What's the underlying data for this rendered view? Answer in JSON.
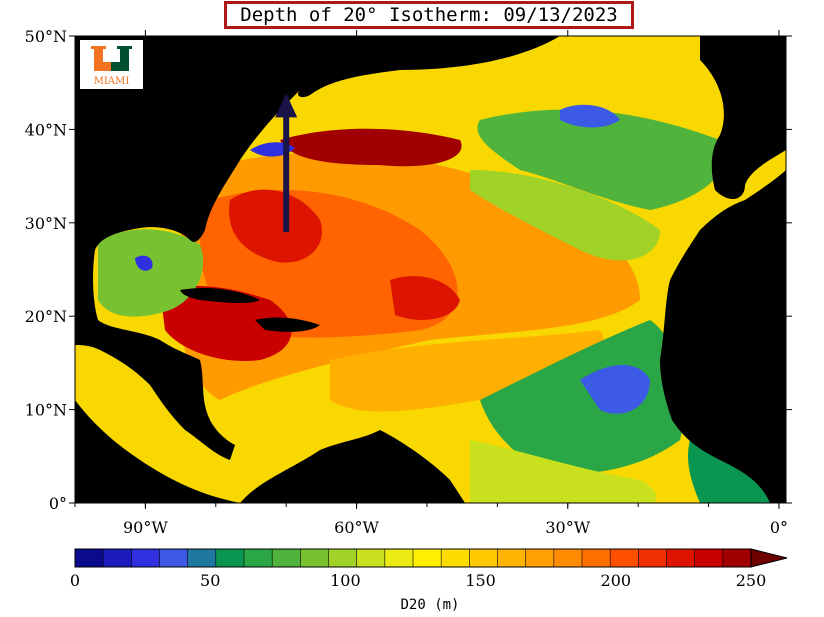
{
  "title": "Depth of 20° Isotherm: 09/13/2023",
  "logo": {
    "text": "MIAMI",
    "letter": "U",
    "color_orange": "#f47321",
    "color_green": "#005030"
  },
  "map": {
    "lon_range": [
      -100,
      1
    ],
    "lat_range": [
      0,
      50
    ],
    "lat_ticks": [
      {
        "value": 50,
        "label": "50°N"
      },
      {
        "value": 40,
        "label": "40°N"
      },
      {
        "value": 30,
        "label": "30°N"
      },
      {
        "value": 20,
        "label": "20°N"
      },
      {
        "value": 10,
        "label": "10°N"
      },
      {
        "value": 0,
        "label": "0°"
      }
    ],
    "lon_ticks": [
      {
        "value": -90,
        "label": "90°W"
      },
      {
        "value": -60,
        "label": "60°W"
      },
      {
        "value": -30,
        "label": "30°W"
      },
      {
        "value": 0,
        "label": "0°"
      }
    ],
    "land_color": "#000000",
    "arrow": {
      "from": [
        -70,
        29
      ],
      "to": [
        -70,
        43
      ],
      "color": "#1a1448"
    }
  },
  "colorbar": {
    "title": "D20 (m)",
    "min": 0,
    "max": 250,
    "step": 10,
    "labels": [
      {
        "value": 0,
        "label": "0"
      },
      {
        "value": 50,
        "label": "50"
      },
      {
        "value": 100,
        "label": "100"
      },
      {
        "value": 150,
        "label": "150"
      },
      {
        "value": 200,
        "label": "200"
      },
      {
        "value": 250,
        "label": "250"
      }
    ],
    "colors": [
      "#0a0a8c",
      "#1c1cbe",
      "#3030e0",
      "#3c5ae6",
      "#1e78a0",
      "#0a9650",
      "#2aa646",
      "#50b43c",
      "#78c232",
      "#a0d228",
      "#c8e01e",
      "#ecec14",
      "#fff000",
      "#ffdc00",
      "#ffc800",
      "#ffb400",
      "#ffa000",
      "#ff8c00",
      "#ff7000",
      "#ff5000",
      "#f03000",
      "#dc1400",
      "#c80000",
      "#a00000"
    ],
    "extend_color": "#6e0000"
  }
}
